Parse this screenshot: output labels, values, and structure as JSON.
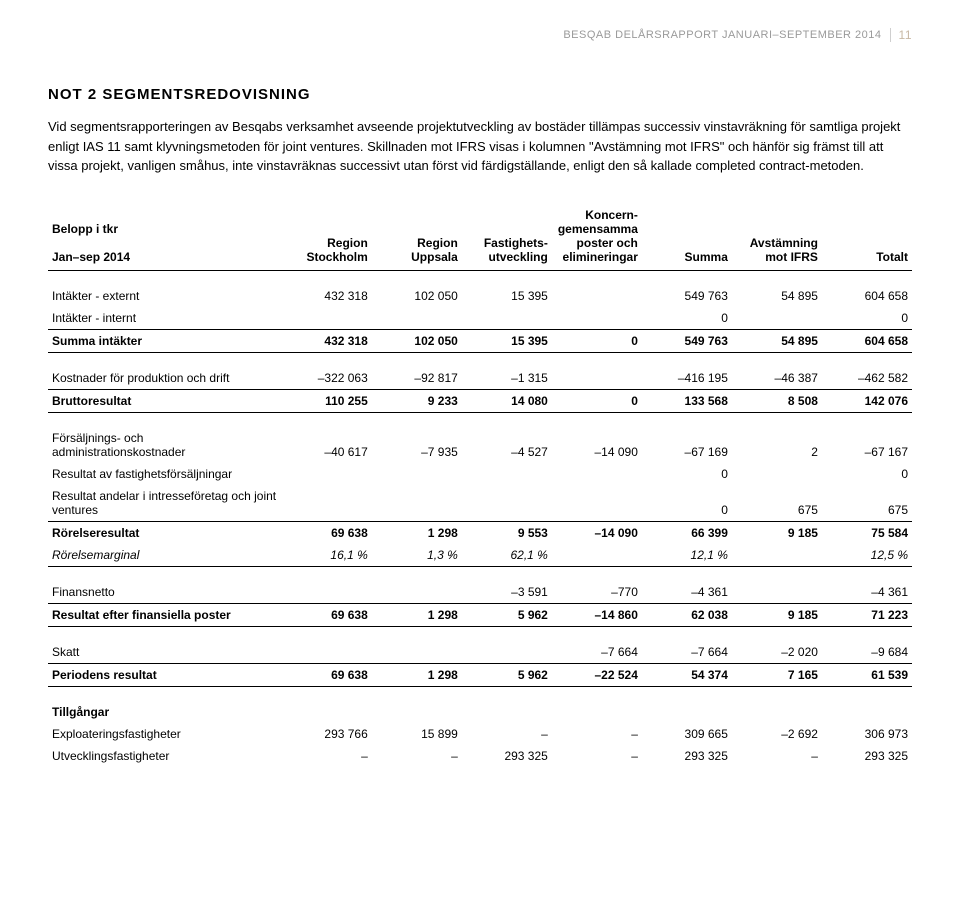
{
  "header": {
    "text": "BESQAB DELÅRSRAPPORT JANUARI–SEPTEMBER 2014",
    "page_no": "11"
  },
  "note": {
    "title": "NOT 2  SEGMENTSREDOVISNING",
    "intro": "Vid segmentsrapporteringen av Besqabs verksamhet avseende projektutveckling av bostäder tillämpas successiv vinstavräkning för samtliga projekt enligt IAS 11 samt klyvningsmetoden för joint ventures. Skillnaden mot IFRS visas i kolumnen \"Avstämning mot IFRS\" och hänför sig främst till att vissa projekt, vanligen småhus, inte vinstavräknas successivt utan först vid färdigställande, enligt den så kallade completed contract-metoden."
  },
  "table": {
    "header": {
      "top_left": "Belopp i tkr",
      "bottom_left": "Jan–sep 2014",
      "cols": [
        "Region\nStockholm",
        "Region\nUppsala",
        "Fastighets-\nutveckling",
        "Koncern-\ngemensamma\nposter och\nelimineringar",
        "Summa",
        "Avstämning\nmot IFRS",
        "Totalt"
      ]
    },
    "rows": {
      "r1": {
        "label": "Intäkter - externt",
        "c": [
          "432 318",
          "102 050",
          "15 395",
          "",
          "549 763",
          "54 895",
          "604 658"
        ]
      },
      "r2": {
        "label": "Intäkter - internt",
        "c": [
          "",
          "",
          "",
          "",
          "0",
          "",
          "0"
        ]
      },
      "r3": {
        "label": "Summa intäkter",
        "c": [
          "432 318",
          "102 050",
          "15 395",
          "0",
          "549 763",
          "54 895",
          "604 658"
        ]
      },
      "r4": {
        "label": "Kostnader för produktion och drift",
        "c": [
          "–322 063",
          "–92 817",
          "–1 315",
          "",
          "–416 195",
          "–46 387",
          "–462 582"
        ]
      },
      "r5": {
        "label": "Bruttoresultat",
        "c": [
          "110 255",
          "9 233",
          "14 080",
          "0",
          "133 568",
          "8 508",
          "142 076"
        ]
      },
      "r6": {
        "label": "Försäljnings- och administrationskostnader",
        "c": [
          "–40 617",
          "–7 935",
          "–4 527",
          "–14 090",
          "–67 169",
          "2",
          "–67 167"
        ]
      },
      "r7": {
        "label": "Resultat av fastighetsförsäljningar",
        "c": [
          "",
          "",
          "",
          "",
          "0",
          "",
          "0"
        ]
      },
      "r8": {
        "label": "Resultat andelar i intresseföretag och joint ventures",
        "c": [
          "",
          "",
          "",
          "",
          "0",
          "675",
          "675"
        ]
      },
      "r9": {
        "label": "Rörelseresultat",
        "c": [
          "69 638",
          "1 298",
          "9 553",
          "–14 090",
          "66 399",
          "9 185",
          "75 584"
        ]
      },
      "r10": {
        "label": "Rörelsemarginal",
        "c": [
          "16,1 %",
          "1,3 %",
          "62,1 %",
          "",
          "12,1 %",
          "",
          "12,5 %"
        ]
      },
      "r11": {
        "label": "Finansnetto",
        "c": [
          "",
          "",
          "–3 591",
          "–770",
          "–4 361",
          "",
          "–4 361"
        ]
      },
      "r12": {
        "label": "Resultat efter finansiella poster",
        "c": [
          "69 638",
          "1 298",
          "5 962",
          "–14 860",
          "62 038",
          "9 185",
          "71 223"
        ]
      },
      "r13": {
        "label": "Skatt",
        "c": [
          "",
          "",
          "",
          "–7 664",
          "–7 664",
          "–2 020",
          "–9 684"
        ]
      },
      "r14": {
        "label": "Periodens resultat",
        "c": [
          "69 638",
          "1 298",
          "5 962",
          "–22 524",
          "54 374",
          "7 165",
          "61 539"
        ]
      },
      "tg_label": "Tillgångar",
      "r15": {
        "label": "Exploateringsfastigheter",
        "c": [
          "293 766",
          "15 899",
          "–",
          "–",
          "309 665",
          "–2 692",
          "306 973"
        ]
      },
      "r16": {
        "label": "Utvecklingsfastigheter",
        "c": [
          "–",
          "–",
          "293 325",
          "–",
          "293 325",
          "–",
          "293 325"
        ]
      }
    }
  }
}
